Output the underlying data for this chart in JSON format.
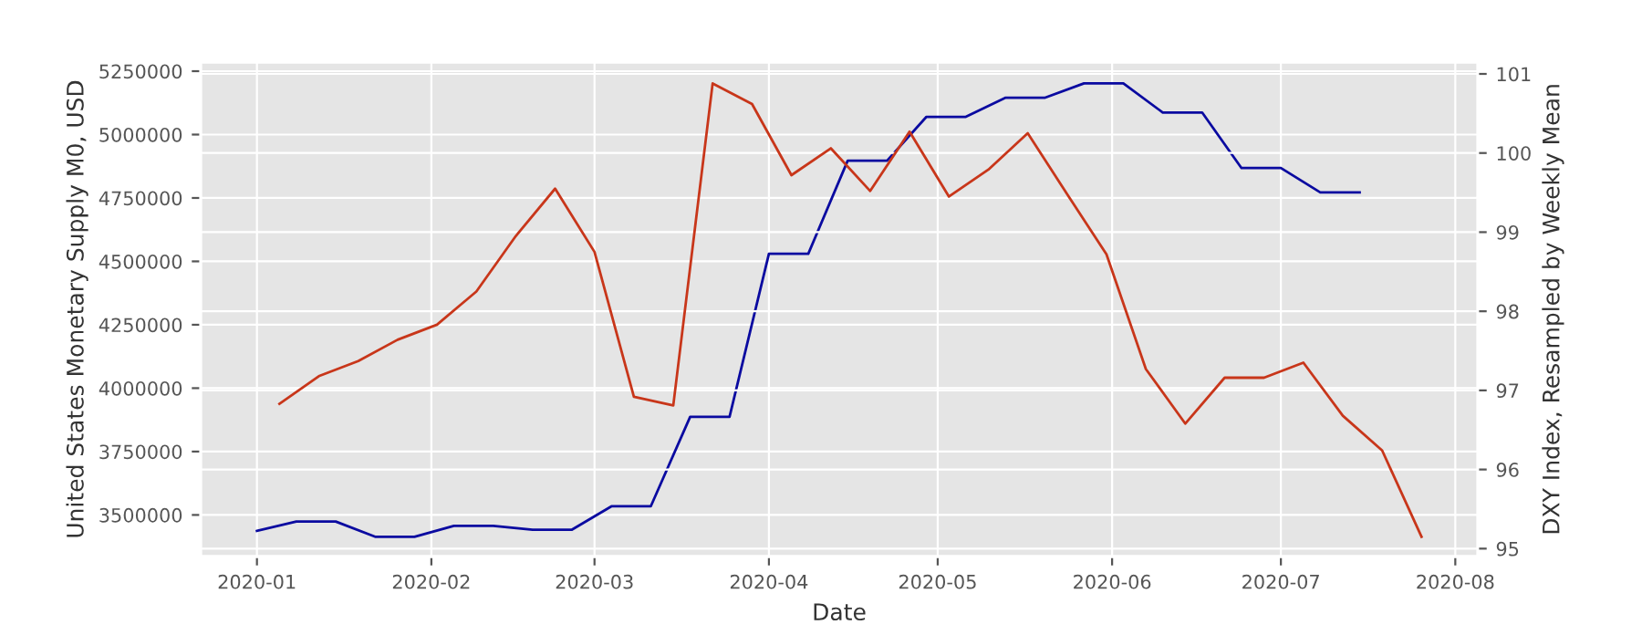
{
  "chart_data": {
    "type": "line",
    "xlabel": "Date",
    "ylabel": "United States Monetary Supply M0, USD",
    "y2label": "DXY Index, Resampled by Weekly Mean",
    "series": [
      {
        "color": "#0a0aa0",
        "x": [
          "2020-01-01",
          "2020-01-08",
          "2020-01-15",
          "2020-01-22",
          "2020-01-29",
          "2020-02-05",
          "2020-02-12",
          "2020-02-19",
          "2020-02-26",
          "2020-03-04",
          "2020-03-11",
          "2020-03-18",
          "2020-03-25",
          "2020-04-01",
          "2020-04-08",
          "2020-04-15",
          "2020-04-22",
          "2020-04-29",
          "2020-05-06",
          "2020-05-13",
          "2020-05-20",
          "2020-05-27",
          "2020-06-03",
          "2020-06-10",
          "2020-06-17",
          "2020-06-24",
          "2020-07-01",
          "2020-07-08",
          "2020-07-15"
        ],
        "values": [
          3437000,
          3474000,
          3474000,
          3414000,
          3414000,
          3457000,
          3457000,
          3442000,
          3442000,
          3534000,
          3534000,
          3887000,
          3887000,
          4530000,
          4530000,
          4897000,
          4897000,
          5070000,
          5070000,
          5145000,
          5145000,
          5202000,
          5202000,
          5087000,
          5087000,
          4868000,
          4868000,
          4772000,
          4772000
        ]
      },
      {
        "color": "#c8361a",
        "axis": "y2",
        "x": [
          "2020-01-05",
          "2020-01-12",
          "2020-01-19",
          "2020-01-26",
          "2020-02-02",
          "2020-02-09",
          "2020-02-16",
          "2020-02-23",
          "2020-03-01",
          "2020-03-08",
          "2020-03-15",
          "2020-03-22",
          "2020-03-29",
          "2020-04-05",
          "2020-04-12",
          "2020-04-19",
          "2020-04-26",
          "2020-05-03",
          "2020-05-10",
          "2020-05-17",
          "2020-05-24",
          "2020-05-31",
          "2020-06-07",
          "2020-06-14",
          "2020-06-21",
          "2020-06-28",
          "2020-07-05",
          "2020-07-12",
          "2020-07-19",
          "2020-07-26"
        ],
        "values": [
          96.83,
          97.18,
          97.37,
          97.64,
          97.83,
          98.25,
          98.95,
          99.55,
          98.75,
          96.92,
          96.81,
          100.88,
          100.62,
          99.72,
          100.06,
          99.52,
          100.27,
          99.45,
          99.79,
          100.25,
          99.48,
          98.72,
          97.27,
          96.58,
          97.16,
          97.16,
          97.35,
          96.68,
          96.24,
          95.15
        ]
      }
    ],
    "xlim": [
      "2019-12-22",
      "2020-08-05"
    ],
    "xticks": [
      {
        "value": "2020-01-01",
        "label": "2020-01"
      },
      {
        "value": "2020-02-01",
        "label": "2020-02"
      },
      {
        "value": "2020-03-01",
        "label": "2020-03"
      },
      {
        "value": "2020-04-01",
        "label": "2020-04"
      },
      {
        "value": "2020-05-01",
        "label": "2020-05"
      },
      {
        "value": "2020-06-01",
        "label": "2020-06"
      },
      {
        "value": "2020-07-01",
        "label": "2020-07"
      },
      {
        "value": "2020-08-01",
        "label": "2020-08"
      }
    ],
    "ylim": [
      3336000,
      5286000
    ],
    "yticks": [
      3500000,
      3750000,
      4000000,
      4250000,
      4500000,
      4750000,
      5000000,
      5250000
    ],
    "y2lim": [
      94.9,
      101.15
    ],
    "y2ticks": [
      95,
      96,
      97,
      98,
      99,
      100,
      101
    ],
    "grid": true,
    "line_style": "solid"
  }
}
